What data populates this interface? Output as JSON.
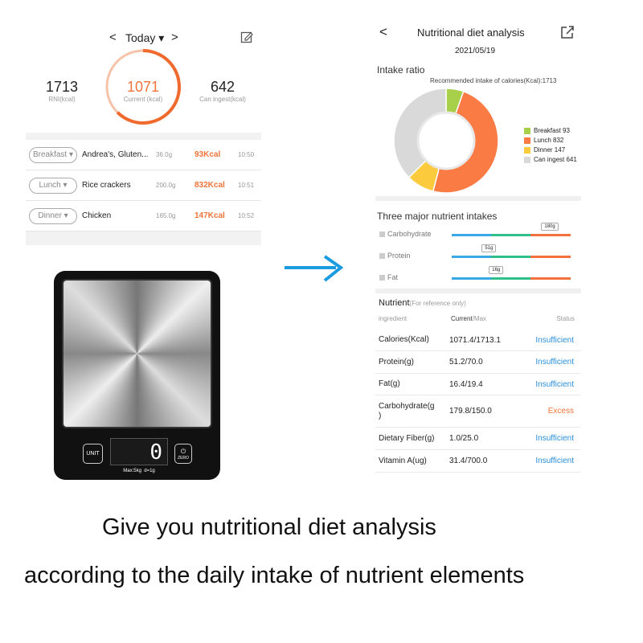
{
  "left_app": {
    "header": {
      "prev": "<",
      "title": "Today",
      "next": ">"
    },
    "stats": [
      {
        "value": "1713",
        "label": "RNI(kcal)"
      },
      {
        "value": "1071",
        "label": "Current (kcal)"
      },
      {
        "value": "642",
        "label": "Can ingest(kcal)"
      }
    ],
    "progress_fraction": 0.625,
    "meals": [
      {
        "meal": "Breakfast",
        "food": "Andrea's, Gluten...",
        "weight": "36.0g",
        "kcal": "93Kcal",
        "time": "10:50"
      },
      {
        "meal": "Lunch",
        "food": "Rice crackers",
        "weight": "200.0g",
        "kcal": "832Kcal",
        "time": "10:51"
      },
      {
        "meal": "Dinner",
        "food": "Chicken",
        "weight": "165.0g",
        "kcal": "147Kcal",
        "time": "10:52"
      }
    ]
  },
  "scale": {
    "display": "0",
    "unit_button": "UNIT",
    "zero_button": "ZERO",
    "spec": "Max:5kg  d=1g"
  },
  "right_app": {
    "back": "<",
    "title": "Nutritional diet analysis",
    "date": "2021/05/19",
    "intake_title": "Intake ratio",
    "recommended": "Recommended intake of calories(Kcal):1713",
    "three_title": "Three major nutrient intakes",
    "macros": [
      {
        "name": "Carbohydrate",
        "tag": "180g",
        "pos": 0.82
      },
      {
        "name": "Protein",
        "tag": "51g",
        "pos": 0.32
      },
      {
        "name": "Fat",
        "tag": "16g",
        "pos": 0.38
      }
    ],
    "nutrient_title": "Nutrient",
    "nutrient_note": "(For reference only)",
    "cols": {
      "ingredient": "ingredient",
      "current": "Current",
      "max": "/Max",
      "status": "Status"
    },
    "rows": [
      {
        "name": "Calories(Kcal)",
        "value": "1071.4/1713.1",
        "status": "Insufficient",
        "kind": "low"
      },
      {
        "name": "Protein(g)",
        "value": "51.2/70.0",
        "status": "Insufficient",
        "kind": "low"
      },
      {
        "name": "Fat(g)",
        "value": "16.4/19.4",
        "status": "Insufficient",
        "kind": "low"
      },
      {
        "name": "Carbohydrate(g\n)",
        "value": "179.8/150.0",
        "status": "Excess",
        "kind": "high"
      },
      {
        "name": "Dietary Fiber(g)",
        "value": "1.0/25.0",
        "status": "Insufficient",
        "kind": "low"
      },
      {
        "name": "Vitamin A(ug)",
        "value": "31.4/700.0",
        "status": "Insufficient",
        "kind": "low"
      }
    ]
  },
  "chart_data": {
    "type": "pie",
    "categories": [
      "Breakfast",
      "Lunch",
      "Dinner",
      "Can ingest"
    ],
    "values": [
      93,
      832,
      147,
      641
    ],
    "labels": [
      "Breakfast 93",
      "Lunch 832",
      "Dinner 147",
      "Can ingest 641"
    ],
    "colors": [
      "#a8cf4a",
      "#fb7b45",
      "#fbcb3d",
      "#d9d9d9"
    ],
    "legend": "right",
    "donut": true
  },
  "colors": {
    "accent": "#f0743a",
    "blue": "#2a8fd8",
    "arrow": "#1b9be0"
  },
  "caption": [
    "Give you nutritional diet analysis",
    "according to the daily intake of nutrient elements"
  ]
}
